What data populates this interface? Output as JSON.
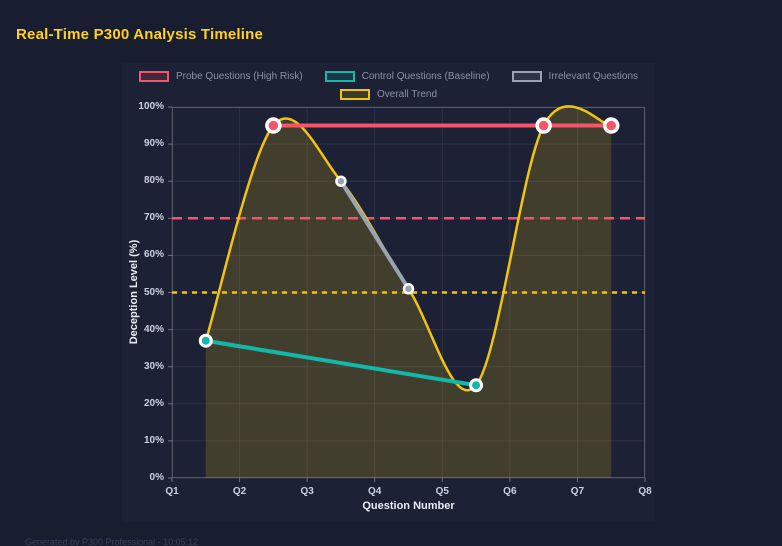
{
  "page": {
    "title": "Real-Time P300 Analysis Timeline",
    "footer": "Generated by P300 Professional - 10:05:12"
  },
  "chart_data": {
    "type": "line",
    "xlabel": "Question Number",
    "ylabel": "Deception Level (%)",
    "x_ticks": [
      "Q1",
      "Q2",
      "Q3",
      "Q4",
      "Q5",
      "Q6",
      "Q7",
      "Q8"
    ],
    "y_ticks": [
      "0%",
      "10%",
      "20%",
      "30%",
      "40%",
      "50%",
      "60%",
      "70%",
      "80%",
      "90%",
      "100%"
    ],
    "xlim": [
      1,
      8
    ],
    "ylim": [
      0,
      100
    ],
    "grid": true,
    "legend_position": "top-center",
    "legend": [
      {
        "label": "Probe Questions (High Risk)",
        "color": "#f4556a"
      },
      {
        "label": "Control Questions (Baseline)",
        "color": "#14b8a6"
      },
      {
        "label": "Irrelevant Questions",
        "color": "#9aa3b2"
      },
      {
        "label": "Overall Trend",
        "color": "#f1c40f"
      }
    ],
    "series": [
      {
        "name": "Probe Questions (High Risk)",
        "color": "#f4556a",
        "line_width": 4,
        "marker_r": 6.5,
        "marker_stroke": 3.5,
        "points": [
          {
            "x": 2.5,
            "y": 95
          },
          {
            "x": 6.5,
            "y": 95
          },
          {
            "x": 7.5,
            "y": 95
          }
        ]
      },
      {
        "name": "Control Questions (Baseline)",
        "color": "#14b8a6",
        "line_width": 4,
        "marker_r": 5.5,
        "marker_stroke": 3,
        "points": [
          {
            "x": 1.5,
            "y": 37
          },
          {
            "x": 5.5,
            "y": 25
          }
        ]
      },
      {
        "name": "Irrelevant Questions",
        "color": "#9aa3b2",
        "line_width": 4,
        "marker_r": 4.5,
        "marker_stroke": 2.5,
        "points": [
          {
            "x": 3.5,
            "y": 80
          },
          {
            "x": 4.5,
            "y": 51
          }
        ]
      }
    ],
    "trend": {
      "name": "Overall Trend",
      "color": "#f1c40f",
      "line_width": 2.5,
      "fill_opacity": 0.18,
      "smooth": true,
      "points": [
        {
          "x": 1.5,
          "y": 37
        },
        {
          "x": 2.5,
          "y": 95
        },
        {
          "x": 3.5,
          "y": 80
        },
        {
          "x": 4.5,
          "y": 51
        },
        {
          "x": 5.5,
          "y": 25
        },
        {
          "x": 6.5,
          "y": 95
        },
        {
          "x": 7.5,
          "y": 95
        }
      ]
    },
    "thresholds": [
      {
        "y": 70,
        "color": "#f4556a",
        "dash": "10 6",
        "width": 2.5
      },
      {
        "y": 50,
        "color": "#f1c40f",
        "dash": "5 5",
        "width": 2.5
      }
    ]
  }
}
